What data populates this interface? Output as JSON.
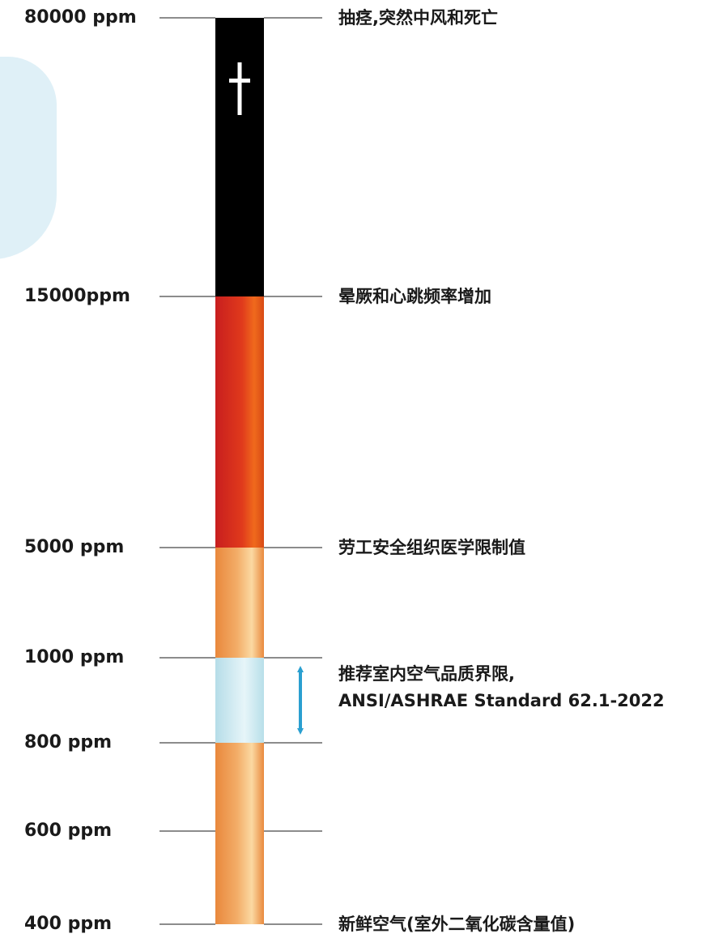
{
  "levels": [
    {
      "ppm": 80000,
      "label": "80000 ppm",
      "description": "抽痉,突然中风和死亡"
    },
    {
      "ppm": 15000,
      "label": "15000ppm",
      "description": "晕厥和心跳频率增加"
    },
    {
      "ppm": 5000,
      "label": "5000 ppm",
      "description": "劳工安全组织医学限制值"
    },
    {
      "ppm": 1000,
      "label": "1000 ppm",
      "description": ""
    },
    {
      "ppm": 800,
      "label": "800 ppm",
      "description": ""
    },
    {
      "ppm": 600,
      "label": "600 ppm",
      "description": ""
    },
    {
      "ppm": 400,
      "label": "400 ppm",
      "description": "新鲜空气(室外二氧化碳含量值)"
    }
  ],
  "recommended_range": {
    "from_ppm": 800,
    "to_ppm": 1000,
    "lines": [
      "推荐室内空气品质界限,",
      "ANSI/ASHRAE Standard 62.1-2022"
    ]
  },
  "segments": [
    {
      "from_ppm": 15000,
      "to_ppm": 80000,
      "zone": "death",
      "color": "#000000",
      "icon": "dagger-icon"
    },
    {
      "from_ppm": 5000,
      "to_ppm": 15000,
      "zone": "danger",
      "color": "#d2261c"
    },
    {
      "from_ppm": 1000,
      "to_ppm": 5000,
      "zone": "caution",
      "color": "#f0a55a"
    },
    {
      "from_ppm": 800,
      "to_ppm": 1000,
      "zone": "recommended",
      "color": "#c8e7ef"
    },
    {
      "from_ppm": 400,
      "to_ppm": 800,
      "zone": "normal",
      "color": "#f0a55a"
    }
  ],
  "colors": {
    "arrow": "#2a9fd0",
    "tick": "#8c8c8c",
    "text": "#1a1a1a",
    "background_shape": "#dff0f7"
  }
}
